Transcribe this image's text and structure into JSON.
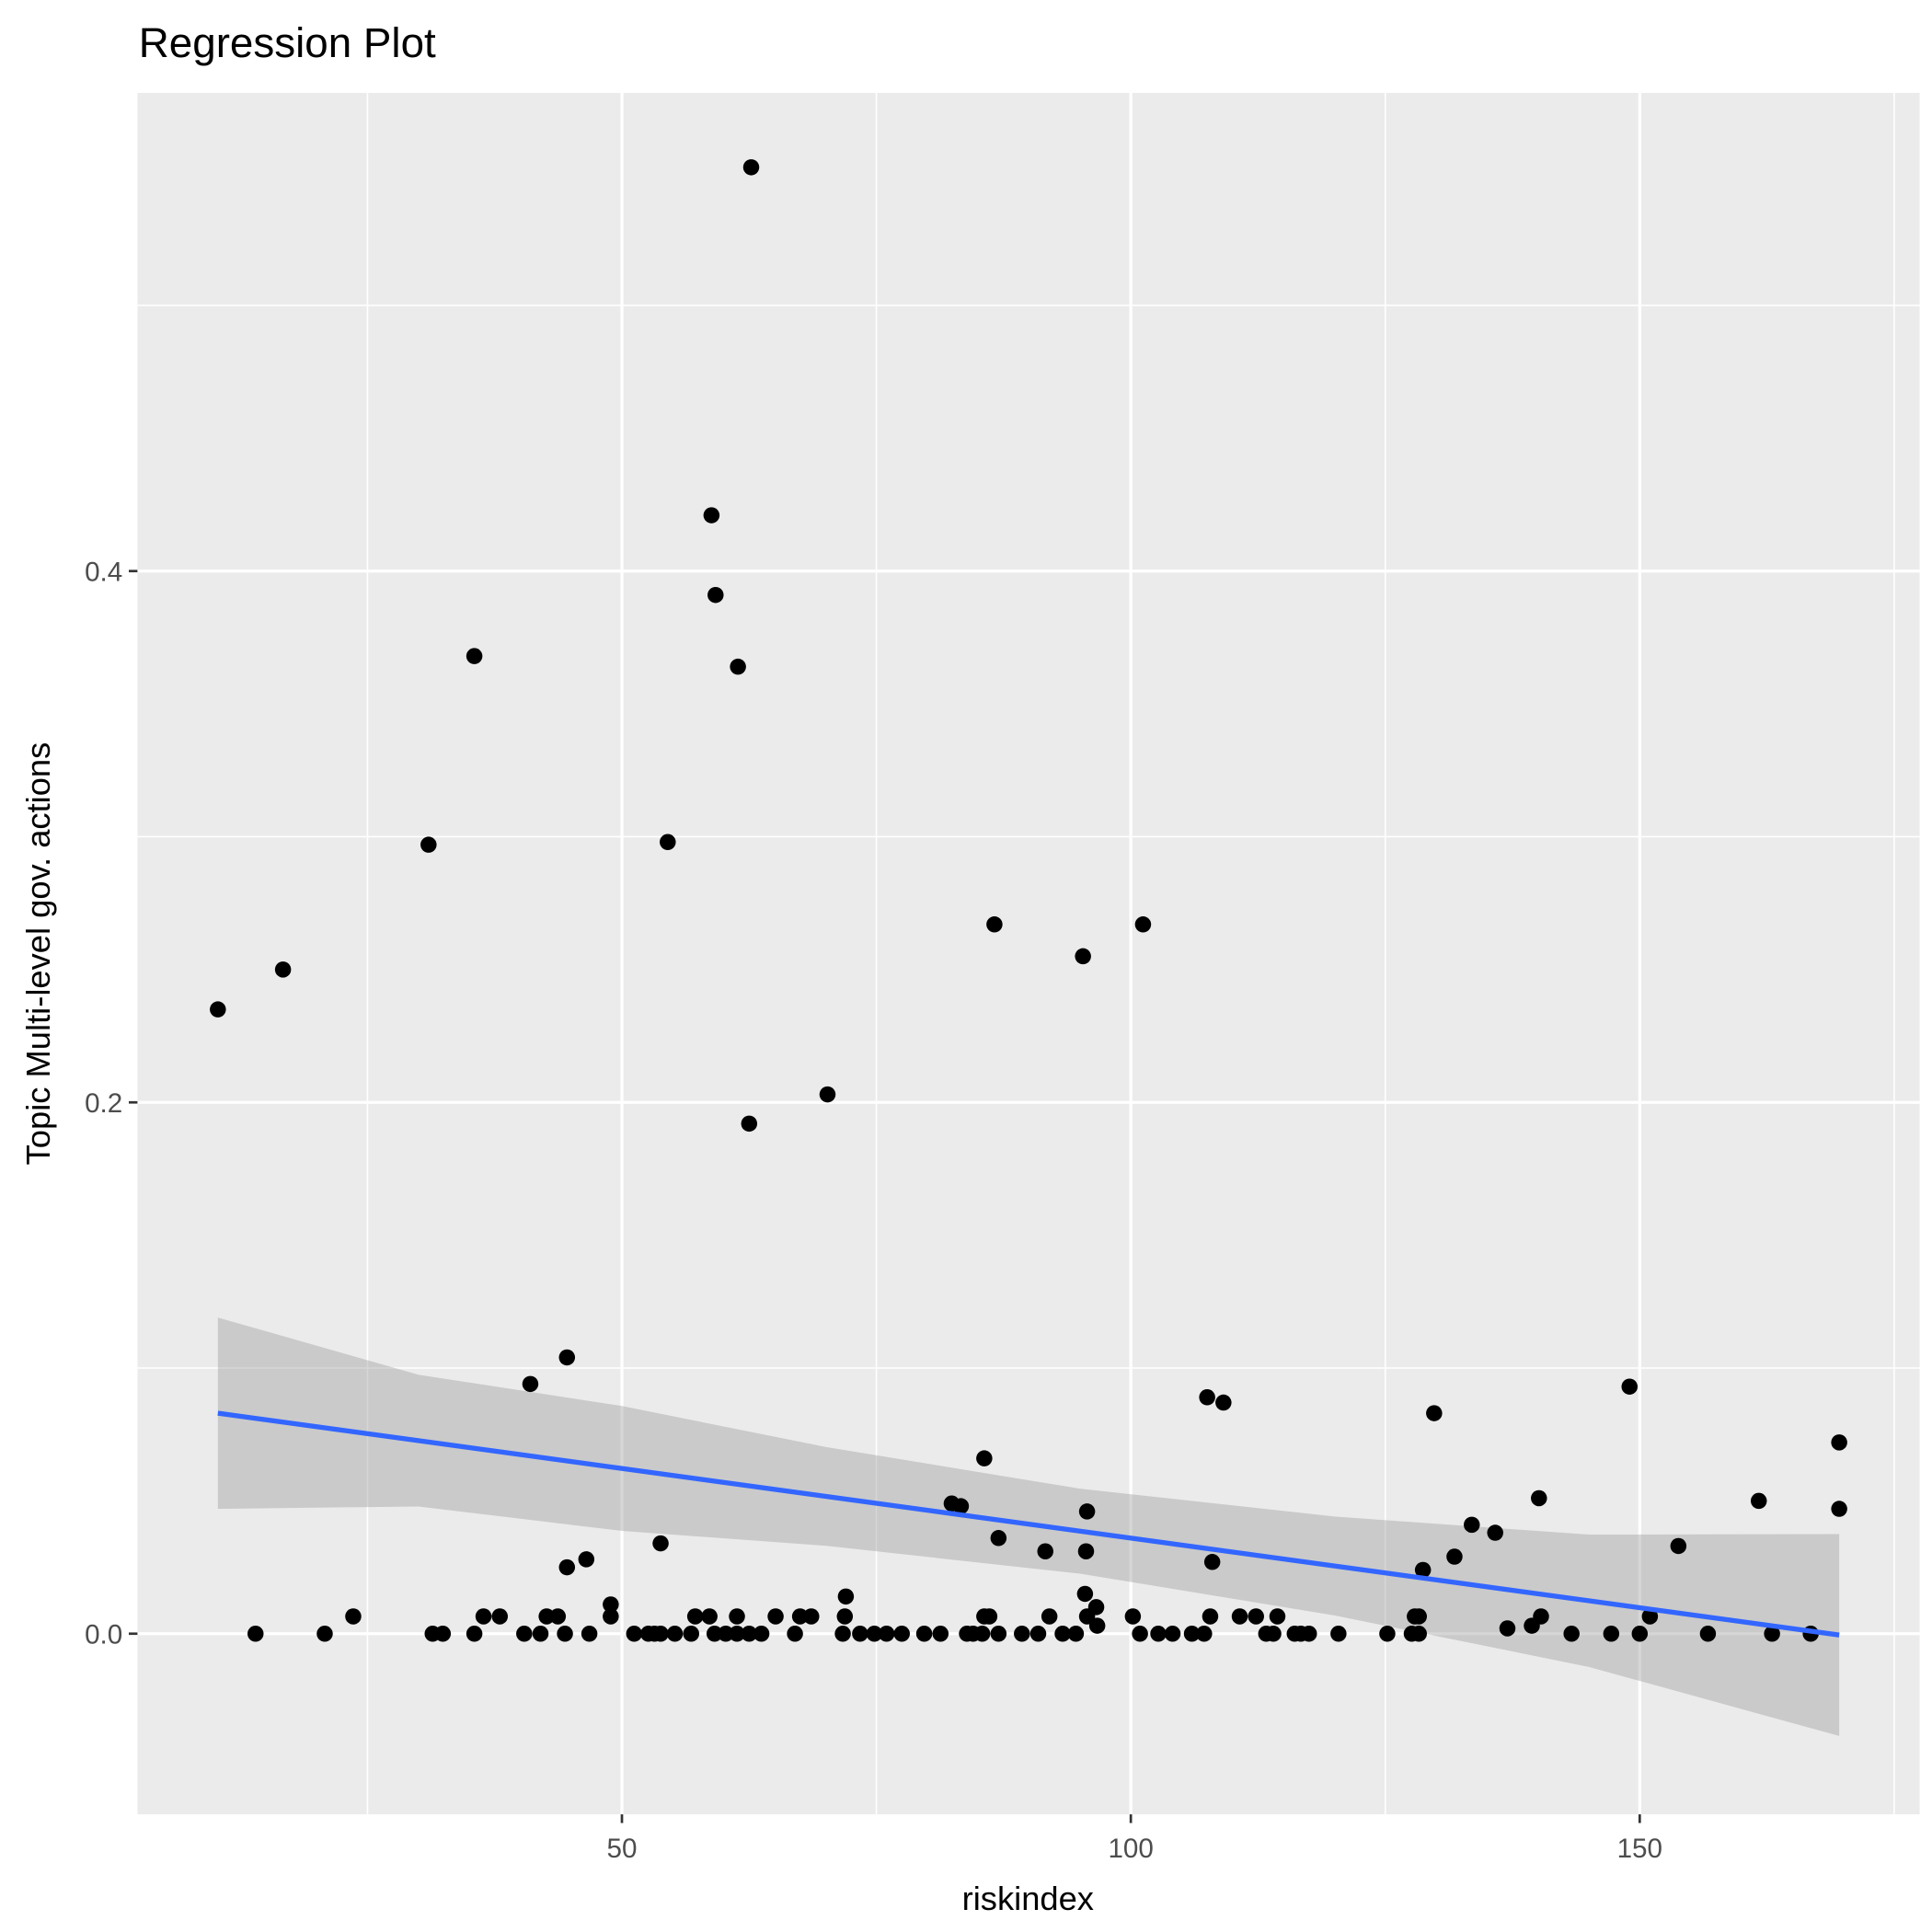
{
  "chart_data": {
    "type": "scatter",
    "title": "Regression Plot",
    "xlabel": "riskindex",
    "ylabel": "Topic Multi-level gov. actions",
    "xlim": [
      2.4,
      177.5
    ],
    "ylim": [
      -0.068,
      0.58
    ],
    "xticks": [
      50,
      100,
      150
    ],
    "xtick_labels": [
      "50",
      "100",
      "150"
    ],
    "yticks": [
      0.0,
      0.2,
      0.4
    ],
    "ytick_labels": [
      "0.0",
      "0.2",
      "0.4"
    ],
    "grid": true,
    "colors": {
      "panel": "#ebebeb",
      "grid": "#ffffff",
      "points": "#000000",
      "line": "#3366ff",
      "band": "#bfbfbf"
    },
    "points": [
      [
        10.3,
        0.235
      ],
      [
        16.7,
        0.25
      ],
      [
        31.0,
        0.297
      ],
      [
        35.5,
        0.368
      ],
      [
        54.5,
        0.298
      ],
      [
        58.8,
        0.421
      ],
      [
        59.2,
        0.391
      ],
      [
        61.4,
        0.364
      ],
      [
        62.7,
        0.552
      ],
      [
        62.5,
        0.192
      ],
      [
        70.2,
        0.203
      ],
      [
        86.6,
        0.267
      ],
      [
        95.3,
        0.255
      ],
      [
        101.2,
        0.267
      ],
      [
        41.0,
        0.094
      ],
      [
        44.6,
        0.104
      ],
      [
        107.5,
        0.089
      ],
      [
        109.1,
        0.087
      ],
      [
        129.8,
        0.083
      ],
      [
        149.0,
        0.093
      ],
      [
        169.6,
        0.072
      ],
      [
        169.6,
        0.047
      ],
      [
        161.7,
        0.05
      ],
      [
        140.1,
        0.051
      ],
      [
        85.6,
        0.066
      ],
      [
        82.4,
        0.049
      ],
      [
        83.3,
        0.048
      ],
      [
        87.0,
        0.036
      ],
      [
        95.7,
        0.046
      ],
      [
        91.6,
        0.031
      ],
      [
        95.6,
        0.031
      ],
      [
        53.8,
        0.034
      ],
      [
        46.5,
        0.028
      ],
      [
        44.6,
        0.025
      ],
      [
        108.0,
        0.027
      ],
      [
        128.7,
        0.024
      ],
      [
        131.8,
        0.029
      ],
      [
        133.5,
        0.041
      ],
      [
        135.8,
        0.038
      ],
      [
        153.8,
        0.033
      ],
      [
        72.0,
        0.014
      ],
      [
        95.5,
        0.015
      ],
      [
        96.6,
        0.01
      ],
      [
        48.9,
        0.011
      ],
      [
        23.6,
        0.0065
      ],
      [
        36.4,
        0.0065
      ],
      [
        38.0,
        0.0065
      ],
      [
        42.6,
        0.0065
      ],
      [
        43.7,
        0.0065
      ],
      [
        48.9,
        0.0065
      ],
      [
        57.2,
        0.0065
      ],
      [
        58.6,
        0.0065
      ],
      [
        61.3,
        0.0065
      ],
      [
        65.1,
        0.0065
      ],
      [
        67.5,
        0.0065
      ],
      [
        68.6,
        0.0065
      ],
      [
        71.9,
        0.0065
      ],
      [
        85.6,
        0.0065
      ],
      [
        86.1,
        0.0065
      ],
      [
        92.0,
        0.0065
      ],
      [
        95.7,
        0.0065
      ],
      [
        100.2,
        0.0065
      ],
      [
        107.8,
        0.0065
      ],
      [
        110.7,
        0.0065
      ],
      [
        112.3,
        0.0065
      ],
      [
        114.4,
        0.0065
      ],
      [
        127.9,
        0.0065
      ],
      [
        128.3,
        0.0065
      ],
      [
        140.3,
        0.0065
      ],
      [
        151.0,
        0.0065
      ],
      [
        139.4,
        0.003
      ],
      [
        96.7,
        0.003
      ],
      [
        137.0,
        0.002
      ],
      [
        14.0,
        0
      ],
      [
        20.8,
        0
      ],
      [
        31.4,
        0
      ],
      [
        32.4,
        0
      ],
      [
        35.5,
        0
      ],
      [
        40.4,
        0
      ],
      [
        42.0,
        0
      ],
      [
        44.4,
        0
      ],
      [
        46.8,
        0
      ],
      [
        51.2,
        0
      ],
      [
        52.6,
        0
      ],
      [
        53.2,
        0
      ],
      [
        53.8,
        0
      ],
      [
        55.2,
        0
      ],
      [
        56.8,
        0
      ],
      [
        59.1,
        0
      ],
      [
        60.2,
        0
      ],
      [
        61.3,
        0
      ],
      [
        62.5,
        0
      ],
      [
        63.7,
        0
      ],
      [
        67.0,
        0
      ],
      [
        71.7,
        0
      ],
      [
        73.4,
        0
      ],
      [
        74.8,
        0
      ],
      [
        76.0,
        0
      ],
      [
        77.5,
        0
      ],
      [
        79.7,
        0
      ],
      [
        81.3,
        0
      ],
      [
        83.9,
        0
      ],
      [
        84.5,
        0
      ],
      [
        85.4,
        0
      ],
      [
        87.0,
        0
      ],
      [
        89.3,
        0
      ],
      [
        90.9,
        0
      ],
      [
        93.3,
        0
      ],
      [
        94.6,
        0
      ],
      [
        100.9,
        0
      ],
      [
        102.7,
        0
      ],
      [
        104.1,
        0
      ],
      [
        106.0,
        0
      ],
      [
        107.2,
        0
      ],
      [
        113.3,
        0
      ],
      [
        114.0,
        0
      ],
      [
        116.1,
        0
      ],
      [
        116.7,
        0
      ],
      [
        117.5,
        0
      ],
      [
        120.4,
        0
      ],
      [
        125.2,
        0
      ],
      [
        127.6,
        0
      ],
      [
        128.3,
        0
      ],
      [
        143.3,
        0
      ],
      [
        147.2,
        0
      ],
      [
        150.0,
        0
      ],
      [
        156.7,
        0
      ],
      [
        163.0,
        0
      ],
      [
        166.8,
        0
      ]
    ],
    "regression": {
      "x": [
        10.3,
        169.6
      ],
      "y": [
        0.083,
        -0.0005
      ]
    },
    "ci_band": {
      "x": [
        10.3,
        30,
        50,
        70,
        95,
        120,
        145,
        169.6
      ],
      "upper": [
        0.119,
        0.0975,
        0.0857,
        0.0703,
        0.0546,
        0.0441,
        0.0373,
        0.0375
      ],
      "lower": [
        0.047,
        0.0479,
        0.0387,
        0.0331,
        0.0226,
        0.0069,
        -0.0125,
        -0.0385
      ]
    }
  }
}
